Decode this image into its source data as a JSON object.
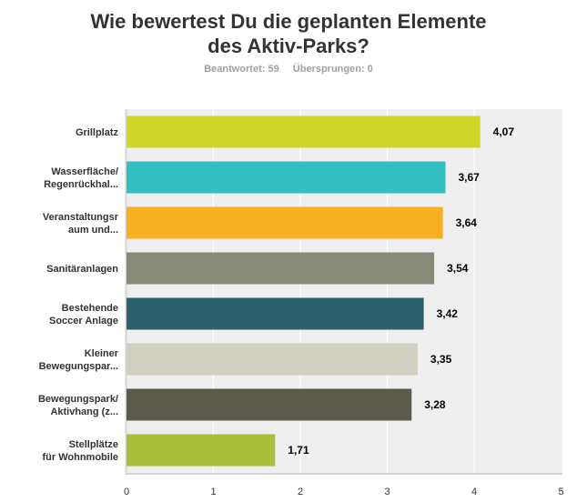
{
  "header": {
    "title_lines": [
      "Wie bewertest Du die geplanten Elemente",
      "des Aktiv-Parks?"
    ],
    "answered": "Beantwortet: 59",
    "skipped": "Übersprungen: 0"
  },
  "chart_data": {
    "type": "bar",
    "orientation": "horizontal",
    "title": "Wie bewertest Du die geplanten Elemente des Aktiv-Parks?",
    "xlabel": "",
    "ylabel": "",
    "xlim": [
      0,
      5
    ],
    "ticks": [
      "0",
      "1",
      "2",
      "3",
      "4",
      "5"
    ],
    "grid": true,
    "categories": [
      [
        "Grillplatz"
      ],
      [
        "Wasserfläche/",
        "Regenrückhal..."
      ],
      [
        "Veranstaltungsr",
        "aum und..."
      ],
      [
        "Sanitäranlagen"
      ],
      [
        "Bestehende",
        "Soccer Anlage"
      ],
      [
        "Kleiner",
        "Bewegungspar..."
      ],
      [
        "Bewegungspark/",
        "Aktivhang (z..."
      ],
      [
        "Stellplätze",
        "für Wohnmobile"
      ]
    ],
    "values": [
      4.07,
      3.67,
      3.64,
      3.54,
      3.42,
      3.35,
      3.28,
      1.71
    ],
    "value_labels": [
      "4,07",
      "3,67",
      "3,64",
      "3,54",
      "3,42",
      "3,35",
      "3,28",
      "1,71"
    ],
    "colors": [
      "#cfd628",
      "#33bfbf",
      "#f7af21",
      "#888a78",
      "#2d5f6c",
      "#d0cfc0",
      "#5c5a4c",
      "#a9be3a"
    ],
    "plot_background": "#efefef"
  }
}
